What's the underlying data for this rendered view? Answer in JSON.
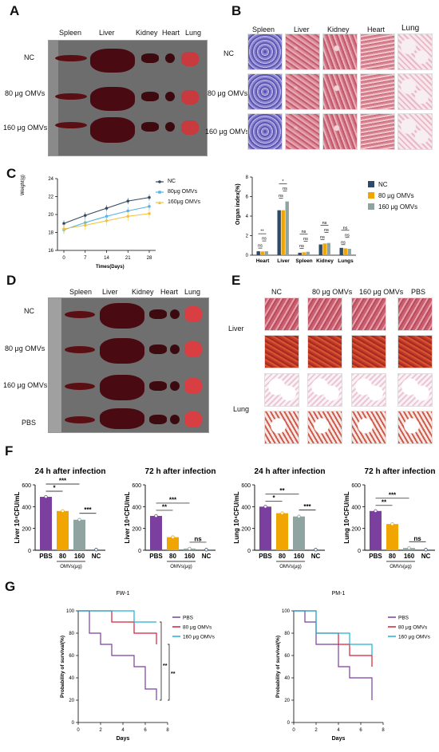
{
  "panels": {
    "a": "A",
    "b": "B",
    "c": "C",
    "d": "D",
    "e": "E",
    "f": "F",
    "g": "G"
  },
  "organs": [
    "Spleen",
    "Liver",
    "Kidney",
    "Heart",
    "Lung"
  ],
  "groups_a": [
    "NC",
    "80 μg OMVs",
    "160 μg OMVs"
  ],
  "groups_d": [
    "NC",
    "80 μg OMVs",
    "160 μg OMVs",
    "PBS"
  ],
  "groups_e": [
    "NC",
    "80 μg OMVs",
    "160 μg OMVs",
    "PBS"
  ],
  "tissue_e": [
    "Liver",
    "Lung"
  ],
  "colors": {
    "nc": "#2e4a6b",
    "omv80": "#f0a500",
    "omv160": "#8fa3a0",
    "pbs": "#7b3fa0",
    "red": "#d1213a",
    "cyan": "#1fb1d6",
    "wt_nc": "#34495e",
    "wt_80": "#4fb3e8",
    "wt_160": "#f2c23a"
  },
  "weight_chart": {
    "type": "line",
    "xlabel": "Times(Days)",
    "ylabel": "Weight(g)",
    "x": [
      0,
      7,
      14,
      21,
      28
    ],
    "xticks": [
      "0",
      "7",
      "14",
      "21",
      "28"
    ],
    "yticks": [
      "16",
      "18",
      "20",
      "22",
      "24"
    ],
    "ylim": [
      16,
      24
    ],
    "series": [
      {
        "name": "NC",
        "values": [
          19.0,
          19.9,
          20.7,
          21.5,
          21.9
        ]
      },
      {
        "name": "80μg OMVs",
        "values": [
          18.3,
          19.1,
          19.8,
          20.4,
          20.9
        ]
      },
      {
        "name": "160μg OMVs",
        "values": [
          18.4,
          18.8,
          19.3,
          19.8,
          20.1
        ]
      }
    ]
  },
  "organ_chart": {
    "type": "bar",
    "ylabel": "Organ index(%)",
    "categories": [
      "Heart",
      "Liver",
      "Spleen",
      "Kidney",
      "Lungs"
    ],
    "yticks": [
      "0",
      "2",
      "4",
      "6",
      "8"
    ],
    "ylim": [
      0,
      8
    ],
    "series": [
      {
        "name": "NC",
        "values": [
          0.4,
          4.6,
          0.25,
          1.1,
          0.75
        ]
      },
      {
        "name": "80 μg OMVs",
        "values": [
          0.38,
          4.6,
          0.3,
          1.2,
          0.7
        ]
      },
      {
        "name": "160 μg OMVs",
        "values": [
          0.4,
          5.5,
          0.35,
          1.25,
          0.65
        ]
      }
    ],
    "sig": [
      "ns",
      "ns",
      "**",
      "ns",
      "ns",
      "*",
      "ns",
      "ns",
      "ns",
      "ns",
      "ns",
      "ns",
      "ns",
      "ns",
      "ns"
    ]
  },
  "cfu_charts": [
    {
      "type": "bar",
      "title": "24 h after infection",
      "ylabel": "Liver 10⁴CFU/mL",
      "categories": [
        "PBS",
        "80",
        "160",
        "NC"
      ],
      "values": [
        490,
        360,
        280,
        5
      ],
      "yticks": [
        "0",
        "200",
        "400",
        "600"
      ],
      "ylim": [
        0,
        600
      ],
      "sig": [
        "***",
        "*",
        "***"
      ],
      "xgroup": "OMVs(μg)"
    },
    {
      "type": "bar",
      "title": "72 h after infection",
      "ylabel": "Liver 10⁴CFU/mL",
      "categories": [
        "PBS",
        "80",
        "160",
        "NC"
      ],
      "values": [
        315,
        120,
        15,
        5
      ],
      "yticks": [
        "0",
        "200",
        "400",
        "600"
      ],
      "ylim": [
        0,
        600
      ],
      "sig": [
        "***",
        "**",
        "ns"
      ],
      "xgroup": "OMVs(μg)"
    },
    {
      "type": "bar",
      "title": "24 h after infection",
      "ylabel": "Lung 10⁴CFU/mL",
      "categories": [
        "PBS",
        "80",
        "160",
        "NC"
      ],
      "values": [
        400,
        340,
        310,
        5
      ],
      "yticks": [
        "0",
        "200",
        "400",
        "600"
      ],
      "ylim": [
        0,
        600
      ],
      "sig": [
        "**",
        "*",
        "***"
      ],
      "xgroup": "OMVs(μg)"
    },
    {
      "type": "bar",
      "title": "72 h after infection",
      "ylabel": "Lung 10⁴CFU/mL",
      "categories": [
        "PBS",
        "80",
        "160",
        "NC"
      ],
      "values": [
        360,
        240,
        20,
        5
      ],
      "yticks": [
        "0",
        "200",
        "400",
        "600"
      ],
      "ylim": [
        0,
        600
      ],
      "sig": [
        "***",
        "**",
        "ns"
      ],
      "xgroup": "OMVs(μg)"
    }
  ],
  "survival_charts": [
    {
      "type": "line",
      "title": "FW-1",
      "xlabel": "Days",
      "ylabel": "Probability of survival(%)",
      "xticks": [
        "0",
        "2",
        "4",
        "6",
        "8"
      ],
      "yticks": [
        "0",
        "20",
        "40",
        "60",
        "80",
        "100"
      ],
      "sig": [
        "**",
        "**"
      ],
      "series": [
        {
          "name": "PBS",
          "steps": [
            [
              0,
              100
            ],
            [
              1,
              80
            ],
            [
              2,
              70
            ],
            [
              3,
              60
            ],
            [
              5,
              50
            ],
            [
              6,
              30
            ],
            [
              7,
              20
            ]
          ]
        },
        {
          "name": "80 μg OMVs",
          "steps": [
            [
              0,
              100
            ],
            [
              3,
              90
            ],
            [
              5,
              80
            ],
            [
              7,
              70
            ]
          ]
        },
        {
          "name": "160 μg OMVs",
          "steps": [
            [
              0,
              100
            ],
            [
              5,
              90
            ],
            [
              7,
              90
            ]
          ]
        }
      ]
    },
    {
      "type": "line",
      "title": "PM-1",
      "xlabel": "Days",
      "ylabel": "Probability of survival(%)",
      "xticks": [
        "0",
        "2",
        "4",
        "6",
        "8"
      ],
      "yticks": [
        "0",
        "20",
        "40",
        "60",
        "80",
        "100"
      ],
      "sig": [],
      "series": [
        {
          "name": "PBS",
          "steps": [
            [
              0,
              100
            ],
            [
              1,
              90
            ],
            [
              2,
              70
            ],
            [
              4,
              50
            ],
            [
              5,
              40
            ],
            [
              7,
              30
            ],
            [
              7,
              20
            ]
          ]
        },
        {
          "name": "80 μg OMVs",
          "steps": [
            [
              0,
              100
            ],
            [
              2,
              80
            ],
            [
              4,
              70
            ],
            [
              5,
              60
            ],
            [
              7,
              50
            ]
          ]
        },
        {
          "name": "160 μg OMVs",
          "steps": [
            [
              0,
              100
            ],
            [
              2,
              80
            ],
            [
              5,
              70
            ],
            [
              7,
              60
            ]
          ]
        }
      ]
    }
  ]
}
